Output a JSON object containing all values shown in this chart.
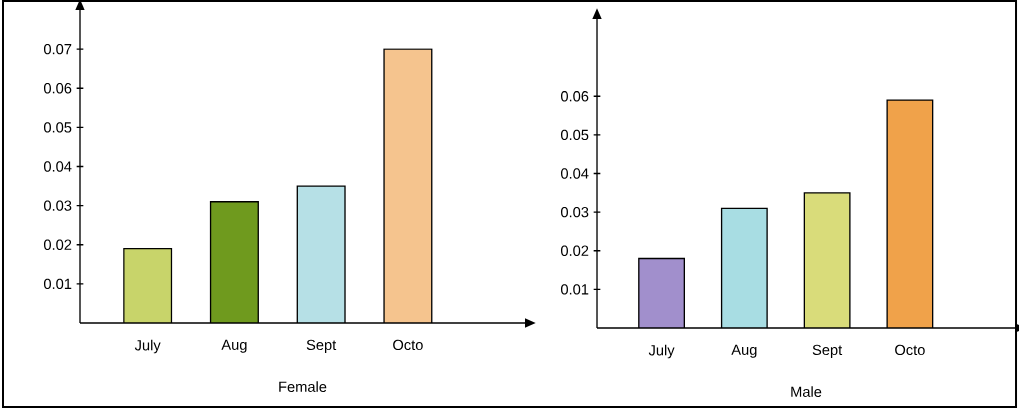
{
  "chart_data": [
    {
      "type": "bar",
      "xlabel": "Female",
      "categories": [
        "July",
        "Aug",
        "Sept",
        "Octo"
      ],
      "values": [
        0.019,
        0.031,
        0.035,
        0.07
      ],
      "colors": [
        "#c8d46a",
        "#6f9a1e",
        "#b6e0e6",
        "#f5c48e"
      ],
      "ylim": [
        0,
        0.08
      ],
      "yticks": [
        0.01,
        0.02,
        0.03,
        0.04,
        0.05,
        0.06,
        0.07
      ]
    },
    {
      "type": "bar",
      "xlabel": "Male",
      "categories": [
        "July",
        "Aug",
        "Sept",
        "Octo"
      ],
      "values": [
        0.018,
        0.031,
        0.035,
        0.059
      ],
      "colors": [
        "#a18fcc",
        "#a8dde3",
        "#d9dc7a",
        "#f0a24a"
      ],
      "ylim": [
        0,
        0.08
      ],
      "yticks": [
        0.01,
        0.02,
        0.03,
        0.04,
        0.05,
        0.06
      ]
    }
  ]
}
